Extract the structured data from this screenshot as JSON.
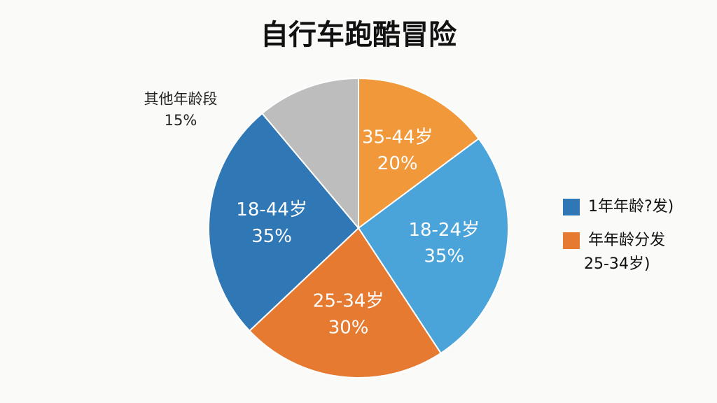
{
  "chart_data": {
    "type": "pie",
    "title": "自行车跑酷冒险",
    "categories": [
      "35-44岁",
      "18-24岁",
      "25-34岁",
      "18-44岁",
      "其他年龄段"
    ],
    "values": [
      20,
      35,
      30,
      35,
      15
    ],
    "value_labels": [
      "20%",
      "35%",
      "30%",
      "35%",
      "15%"
    ],
    "colors": [
      "#f0983a",
      "#4aa3d9",
      "#e57a30",
      "#2f78b5",
      "#bdbdbd"
    ],
    "legend": [
      {
        "label": [
          "1年年龄?发)"
        ],
        "color": "#2f78b5"
      },
      {
        "label": [
          "年年龄分发",
          "25-34岁)"
        ],
        "color": "#e57a30"
      }
    ]
  }
}
